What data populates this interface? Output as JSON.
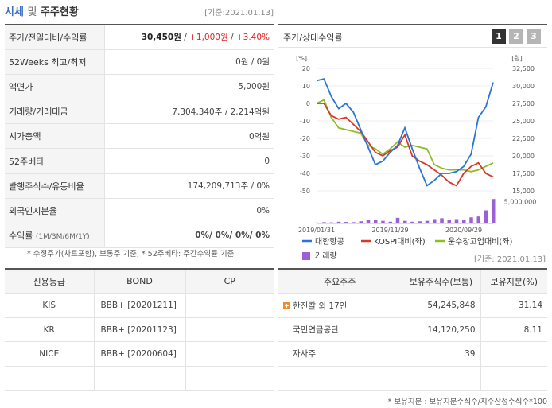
{
  "header": {
    "title_main": "시세",
    "title_and": "및",
    "title_sub": "주주현황",
    "base_date": "[기준:2021.01.13]"
  },
  "info_rows": [
    {
      "label": "주가/전일대비/수익률"
    },
    {
      "label": "52Weeks 최고/최저",
      "value": "0원 / 0원"
    },
    {
      "label": "액면가",
      "value": "5,000원"
    },
    {
      "label": "거래량/거래대금",
      "value": "7,304,340주 / 2,214억원"
    },
    {
      "label": "시가총액",
      "value": "0억원"
    },
    {
      "label": "52주베타",
      "value": "0"
    },
    {
      "label": "발행주식수/유동비율",
      "value": "174,209,713주 / 0%"
    },
    {
      "label": "외국인지분율",
      "value": "0%"
    },
    {
      "label": "수익률",
      "label_small": "(1M/3M/6M/1Y)",
      "value": "0%/ 0%/ 0%/ 0%"
    }
  ],
  "price": {
    "value": "30,450원",
    "sep1": " / ",
    "change": "+1,000원",
    "sep2": " / ",
    "rate": "+3.40%"
  },
  "note": "* 수정주가(차트포함), 보통주 기준, * 52주베타: 주간수익률 기준",
  "chart": {
    "title": "주가/상대수익률",
    "tabs": [
      "1",
      "2",
      "3"
    ],
    "active_tab": 0,
    "left_unit": "[%]",
    "right_unit": "[원]",
    "left_ticks": [
      "20",
      "10",
      "0",
      "-10",
      "-20",
      "-30",
      "-40",
      "-50"
    ],
    "right_ticks": [
      "32,500",
      "30,000",
      "27,500",
      "25,000",
      "22,500",
      "20,000",
      "17,500",
      "15,000"
    ],
    "volume_tick": "5,000,000",
    "x_ticks": [
      "2019/01/31",
      "2019/11/29",
      "2020/09/29"
    ],
    "legend": [
      "대한항공",
      "KOSPI대비(좌)",
      "운수창고업대비(좌)",
      "거래량"
    ],
    "colors": {
      "stock": "#2a75d3",
      "kospi": "#d8382a",
      "sector": "#8ebd28",
      "volume": "#9b5fd6"
    }
  },
  "chart_data": {
    "type": "line",
    "x": [
      "2019/01",
      "2019/02",
      "2019/03",
      "2019/04",
      "2019/05",
      "2019/06",
      "2019/07",
      "2019/08",
      "2019/09",
      "2019/10",
      "2019/11",
      "2019/12",
      "2020/01",
      "2020/02",
      "2020/03",
      "2020/04",
      "2020/05",
      "2020/06",
      "2020/07",
      "2020/08",
      "2020/09",
      "2020/10",
      "2020/11",
      "2020/12",
      "2021/01"
    ],
    "series": [
      {
        "name": "대한항공",
        "axis": "left",
        "values": [
          13,
          14,
          4,
          -3,
          0,
          -5,
          -15,
          -25,
          -35,
          -33,
          -28,
          -24,
          -14,
          -26,
          -37,
          -47,
          -44,
          -40,
          -40,
          -39,
          -36,
          -29,
          -8,
          -2,
          12
        ]
      },
      {
        "name": "KOSPI대비(좌)",
        "axis": "left",
        "values": [
          0,
          0,
          -7,
          -9,
          -8,
          -12,
          -16,
          -22,
          -28,
          -30,
          -27,
          -25,
          -18,
          -30,
          -33,
          -35,
          -38,
          -41,
          -45,
          -47,
          -40,
          -36,
          -34,
          -40,
          -42
        ]
      },
      {
        "name": "운수창고업대비(좌)",
        "axis": "left",
        "values": [
          0,
          2,
          -8,
          -14,
          -15,
          -16,
          -17,
          -24,
          -26,
          -29,
          -26,
          -22,
          -25,
          -24,
          -25,
          -26,
          -35,
          -37,
          -38,
          -38,
          -38,
          -39,
          -38,
          -36,
          -34
        ]
      },
      {
        "name": "거래량",
        "axis": "volume",
        "values": [
          200000,
          300000,
          250000,
          400000,
          350000,
          300000,
          500000,
          900000,
          800000,
          600000,
          400000,
          1300000,
          600000,
          400000,
          500000,
          600000,
          1000000,
          1200000,
          800000,
          1000000,
          900000,
          1400000,
          1600000,
          3000000,
          5600000
        ]
      }
    ],
    "ylim_left": [
      -50,
      20
    ],
    "ylim_right": [
      15000,
      32500
    ],
    "ylabel_left": "[%]",
    "ylabel_right": "[원]",
    "legend_position": "bottom"
  },
  "rating": {
    "headers": [
      "신용등급",
      "BOND",
      "CP"
    ],
    "rows": [
      [
        "KIS",
        "BBB+  [20201211]",
        ""
      ],
      [
        "KR",
        "BBB+  [20201123]",
        ""
      ],
      [
        "NICE",
        "BBB+  [20200604]",
        ""
      ],
      [
        "",
        "",
        ""
      ]
    ]
  },
  "holders": {
    "base_date": "[기준: 2021.01.13]",
    "headers": [
      "주요주주",
      "보유주식수(보통)",
      "보유지분(%)"
    ],
    "rows": [
      [
        "한진칼 외 17인",
        "54,245,848",
        "31.14"
      ],
      [
        "국민연금공단",
        "14,120,250",
        "8.11"
      ],
      [
        "자사주",
        "39",
        ""
      ],
      [
        "",
        "",
        ""
      ]
    ],
    "expand_icon": "+"
  },
  "footnote": "* 보유지분 : 보유지분주식수/지수산정주식수*100"
}
